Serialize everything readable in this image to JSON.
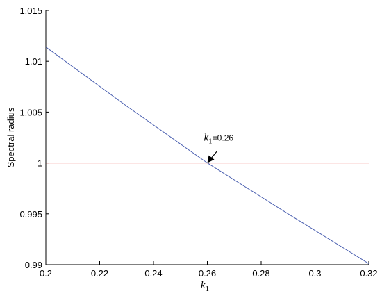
{
  "chart_data": {
    "type": "line",
    "ylabel": "Spectral radius",
    "xlabel": {
      "symbol": "k",
      "subscript": "1"
    },
    "x": [
      0.2,
      0.23,
      0.26,
      0.29,
      0.32
    ],
    "series": [
      {
        "color": "#4a5fb0",
        "values": [
          1.0114,
          1.0056,
          1.0,
          0.995,
          0.9901
        ]
      },
      {
        "color": "#e8302a",
        "values": [
          1,
          1,
          1,
          1,
          1
        ]
      }
    ],
    "annotation": {
      "symbol": "k",
      "subscript": "1",
      "text": "=0.26",
      "x": 0.26,
      "y": 1
    },
    "xlim": [
      0.2,
      0.32
    ],
    "xticks": [
      0.2,
      0.22,
      0.24,
      0.26,
      0.28,
      0.3,
      0.32
    ],
    "ylim": [
      0.99,
      1.015
    ],
    "yticks": [
      0.99,
      0.995,
      1,
      1.005,
      1.01,
      1.015
    ]
  }
}
